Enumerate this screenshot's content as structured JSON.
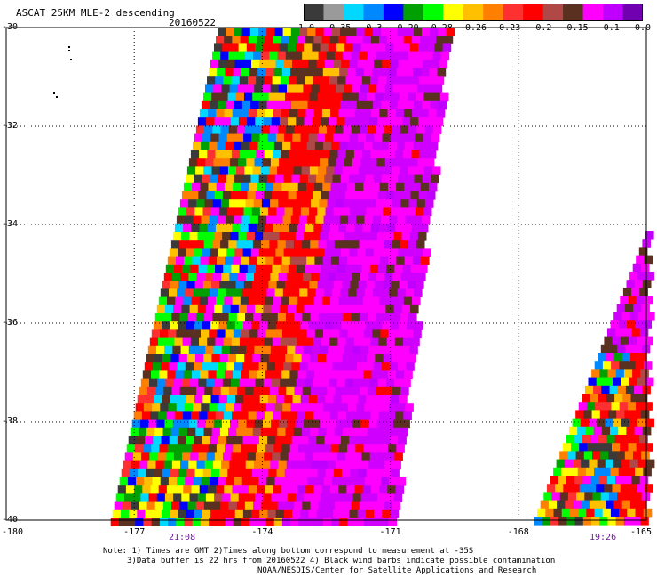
{
  "title": "ASCAT 25KM MLE-2 descending",
  "date": "20160522",
  "colorbar": {
    "labels": [
      "-1.0",
      "-0.35",
      "-0.3",
      "-0.29",
      "-0.28",
      "-0.26",
      "-0.23",
      "-0.2",
      "-0.15",
      "-0.1",
      "0.0"
    ],
    "colors": [
      "#3a3a3a",
      "#9a9a9a",
      "#00d8ff",
      "#0088ff",
      "#0000ff",
      "#00a000",
      "#00ff00",
      "#ffff00",
      "#ffc000",
      "#ff8000",
      "#ff3030",
      "#ff0000",
      "#b04848",
      "#5a3020",
      "#ff00ff",
      "#c000ff",
      "#7000b0"
    ]
  },
  "axes": {
    "y_labels": [
      "-30",
      "-32",
      "-34",
      "-36",
      "-38",
      "-40"
    ],
    "x_labels": [
      "-180",
      "-177",
      "-174",
      "-171",
      "-168",
      "-165"
    ]
  },
  "times": [
    "21:08",
    "19:26"
  ],
  "notes": {
    "line1": "Note: 1) Times are GMT 2)Times along bottom correspond to measurement at -35S",
    "line2": "3)Data buffer is 22 hrs from 20160522 4) Black wind barbs indicate possible contamination",
    "line3": "NOAA/NESDIS/Center for Satellite Applications and Research"
  }
}
